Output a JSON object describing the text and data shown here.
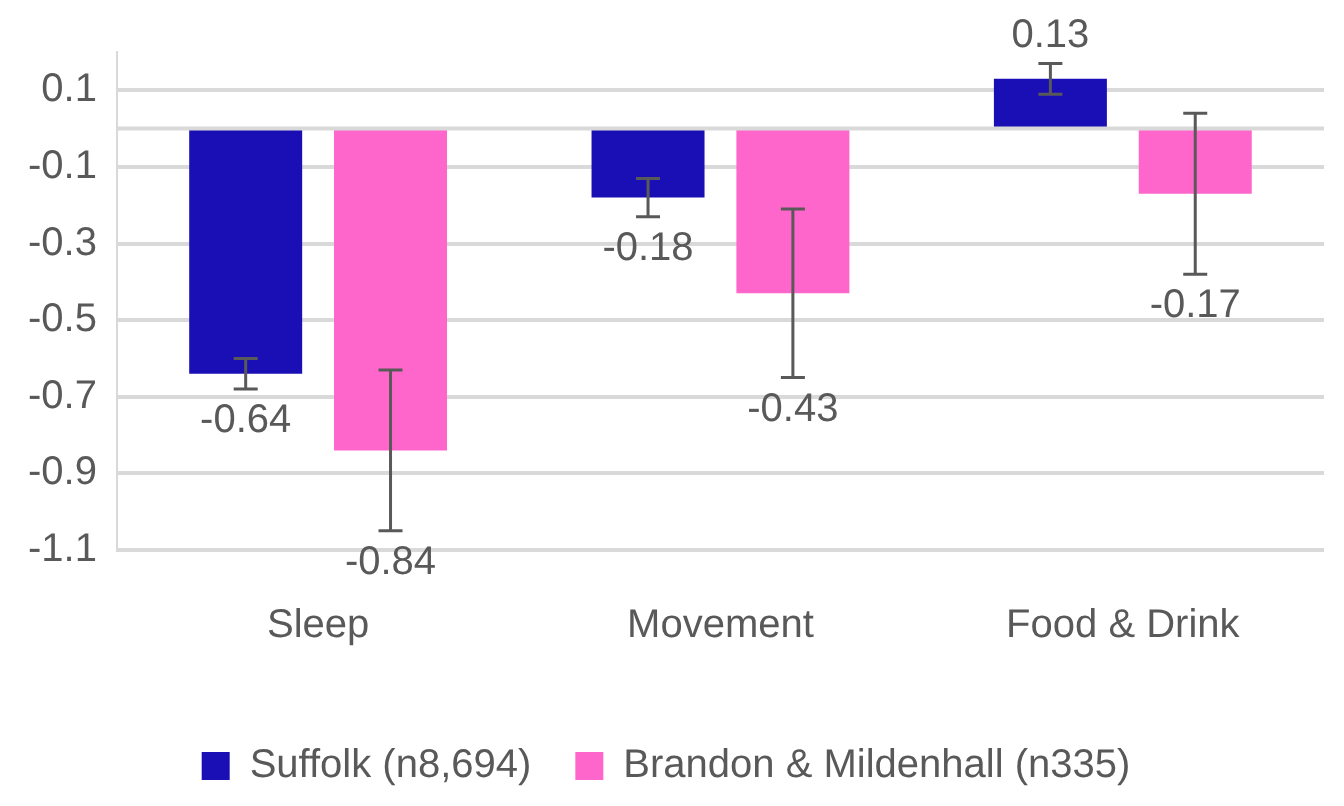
{
  "chart_data": {
    "type": "bar",
    "categories": [
      "Sleep",
      "Movement",
      "Food & Drink"
    ],
    "series": [
      {
        "name": "Suffolk (n8,694)",
        "color": "#1a0fb5",
        "values": [
          -0.64,
          -0.18,
          0.13
        ],
        "errors": [
          0.04,
          0.05,
          0.04
        ]
      },
      {
        "name": "Brandon & Mildenhall (n335)",
        "color": "#ff66cc",
        "values": [
          -0.84,
          -0.43,
          -0.17
        ],
        "errors": [
          0.21,
          0.22,
          0.21
        ]
      }
    ],
    "ylim": [
      -1.1,
      0.2
    ],
    "yticks": [
      -1.1,
      -0.9,
      -0.7,
      -0.5,
      -0.3,
      -0.1,
      0.1
    ],
    "ref_lines": [
      {
        "axis": "y",
        "value": 0,
        "color": "#d9d9d9"
      }
    ],
    "grid": "y",
    "legend": "bottom",
    "data_labels": true
  }
}
